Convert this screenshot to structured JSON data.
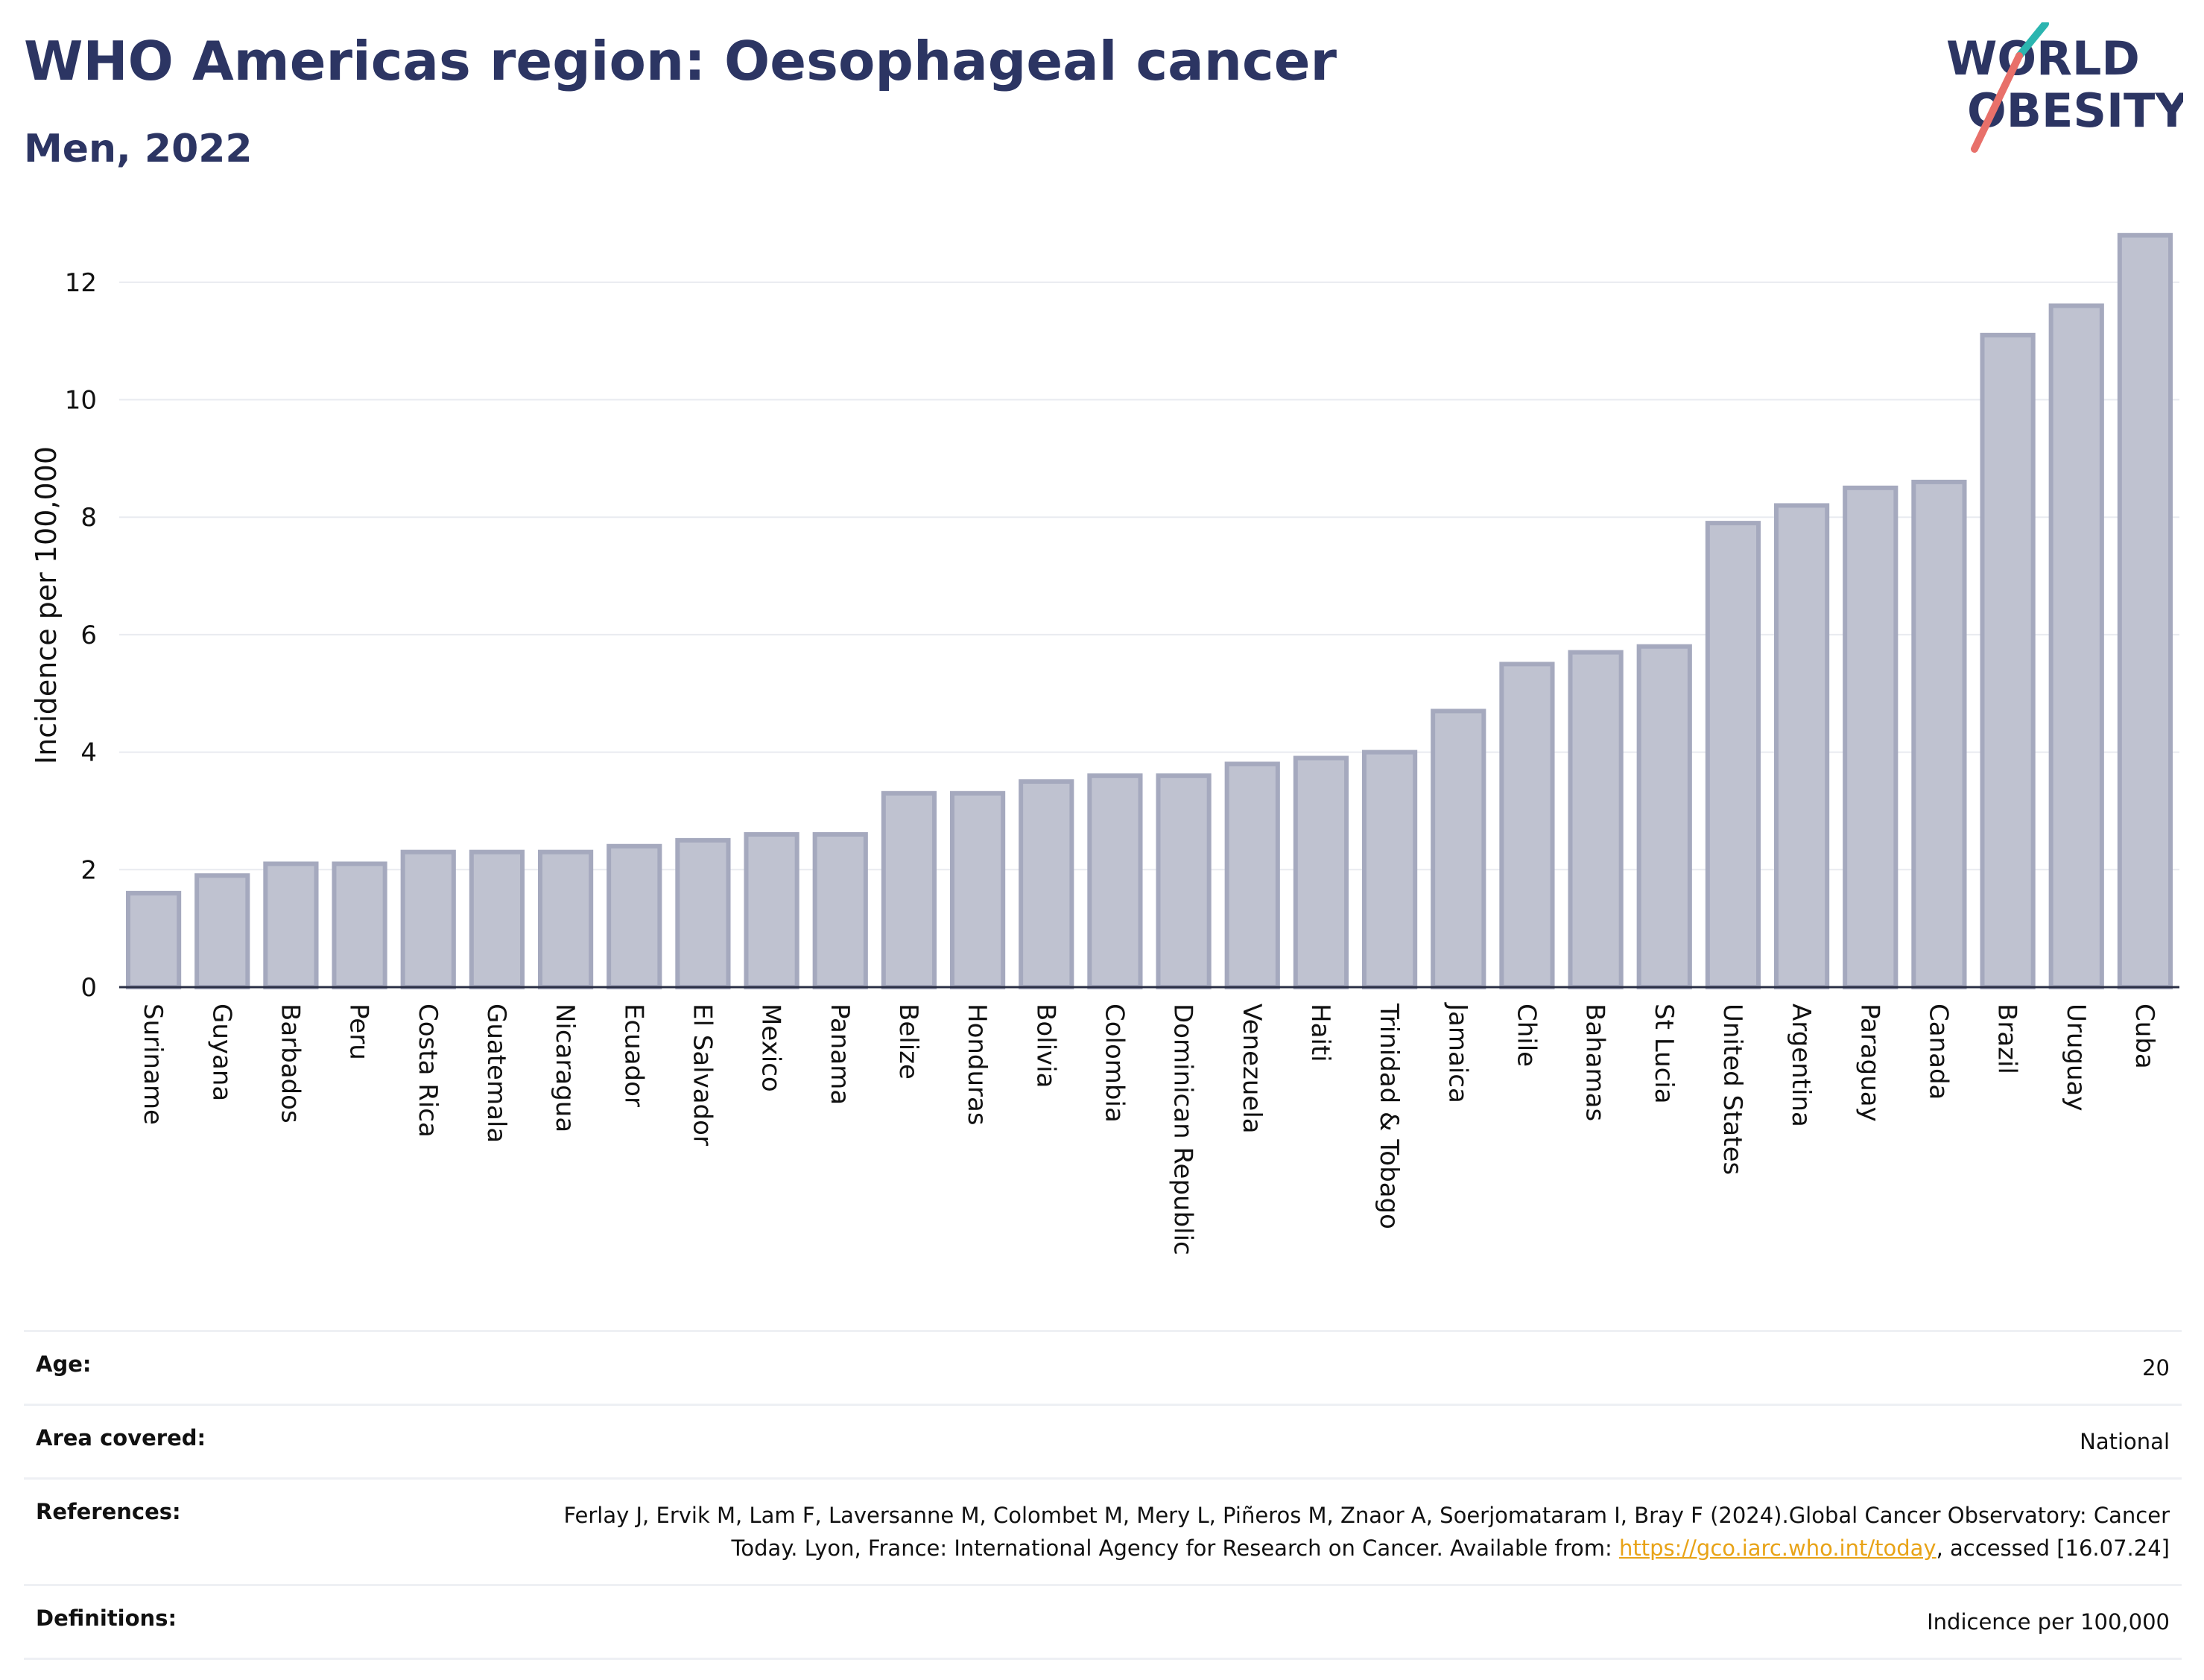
{
  "header": {
    "title": "WHO Americas region: Oesophageal cancer",
    "subtitle": "Men, 2022"
  },
  "logo": {
    "line1": "WORLD",
    "line2": "OBESITY",
    "slash_colors": [
      "#2bb5b0",
      "#e8706a"
    ],
    "text_color": "#2c3563"
  },
  "chart_data": {
    "type": "bar",
    "ylabel": "Incidence per 100,000",
    "xlabel": "",
    "ylim": [
      0,
      13
    ],
    "yticks": [
      0,
      2,
      4,
      6,
      8,
      10,
      12
    ],
    "grid": true,
    "bar_fill": "#bfc2d0",
    "bar_stroke": "#a5a9be",
    "categories": [
      "Suriname",
      "Guyana",
      "Barbados",
      "Peru",
      "Costa Rica",
      "Guatemala",
      "Nicaragua",
      "Ecuador",
      "El Salvador",
      "Mexico",
      "Panama",
      "Belize",
      "Honduras",
      "Bolivia",
      "Colombia",
      "Dominican Republic",
      "Venezuela",
      "Haiti",
      "Trinidad & Tobago",
      "Jamaica",
      "Chile",
      "Bahamas",
      "St Lucia",
      "United States",
      "Argentina",
      "Paraguay",
      "Canada",
      "Brazil",
      "Uruguay",
      "Cuba"
    ],
    "values": [
      1.6,
      1.9,
      2.1,
      2.1,
      2.3,
      2.3,
      2.3,
      2.4,
      2.5,
      2.6,
      2.6,
      3.3,
      3.3,
      3.5,
      3.6,
      3.6,
      3.8,
      3.9,
      4.0,
      4.7,
      5.5,
      5.7,
      5.8,
      7.9,
      8.2,
      8.5,
      8.6,
      11.1,
      11.6,
      12.8
    ]
  },
  "meta": {
    "age_label": "Age:",
    "age_value": "20",
    "area_label": "Area covered:",
    "area_value": "National",
    "references_label": "References:",
    "references_text": "Ferlay J, Ervik M, Lam F, Laversanne M, Colombet M, Mery L, Piñeros M, Znaor A, Soerjomataram I, Bray F (2024).Global Cancer Observatory: Cancer Today. Lyon, France: International Agency for Research on Cancer. Available from: ",
    "references_link": "https://gco.iarc.who.int/today",
    "references_suffix": ", accessed [16.07.24]",
    "definitions_label": "Definitions:",
    "definitions_value": "Indicence per 100,000"
  }
}
